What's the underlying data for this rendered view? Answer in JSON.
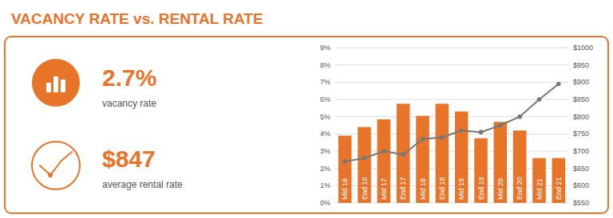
{
  "chart_data": {
    "type": "bar",
    "title": "VACANCY RATE vs. RENTAL RATE",
    "annotations": [
      "2.7%",
      "vacancy rate",
      "$847",
      "average rental rate"
    ],
    "categories": [
      "Mid 16",
      "End 16",
      "Mid 17",
      "End 17",
      "Mid 18",
      "End 18",
      "Mid 19",
      "End 19",
      "Mid 20",
      "End 20",
      "Mid 21",
      "End 21"
    ],
    "series": [
      {
        "type": "bar",
        "color": "#e8742a",
        "values": [
          3.9,
          4.4,
          4.85,
          5.75,
          5.05,
          5.75,
          5.3,
          3.75,
          4.7,
          4.2,
          2.6,
          2.6
        ]
      },
      {
        "type": "line",
        "axis": "y2",
        "color": "#777777",
        "marker": "circle",
        "values": [
          670,
          680,
          700,
          690,
          735,
          740,
          760,
          755,
          775,
          800,
          850,
          895
        ]
      }
    ],
    "ylim": [
      0,
      9
    ],
    "yticks": [
      {
        "value": 0,
        "label": "0%"
      },
      {
        "value": 1,
        "label": "1%"
      },
      {
        "value": 2,
        "label": "2%"
      },
      {
        "value": 3,
        "label": "3%"
      },
      {
        "value": 4,
        "label": "4%"
      },
      {
        "value": 5,
        "label": "5%"
      },
      {
        "value": 6,
        "label": "6%"
      },
      {
        "value": 7,
        "label": "7%"
      },
      {
        "value": 8,
        "label": "8%"
      },
      {
        "value": 9,
        "label": "9%"
      }
    ],
    "y2lim": [
      550,
      1000
    ],
    "y2ticks": [
      {
        "value": 550,
        "label": "$550"
      },
      {
        "value": 600,
        "label": "$600"
      },
      {
        "value": 650,
        "label": "$650"
      },
      {
        "value": 700,
        "label": "$700"
      },
      {
        "value": 750,
        "label": "$750"
      },
      {
        "value": 800,
        "label": "$800"
      },
      {
        "value": 850,
        "label": "$850"
      },
      {
        "value": 900,
        "label": "$900"
      },
      {
        "value": 950,
        "label": "$950"
      },
      {
        "value": 1000,
        "label": "$1000"
      }
    ],
    "grid": true
  }
}
